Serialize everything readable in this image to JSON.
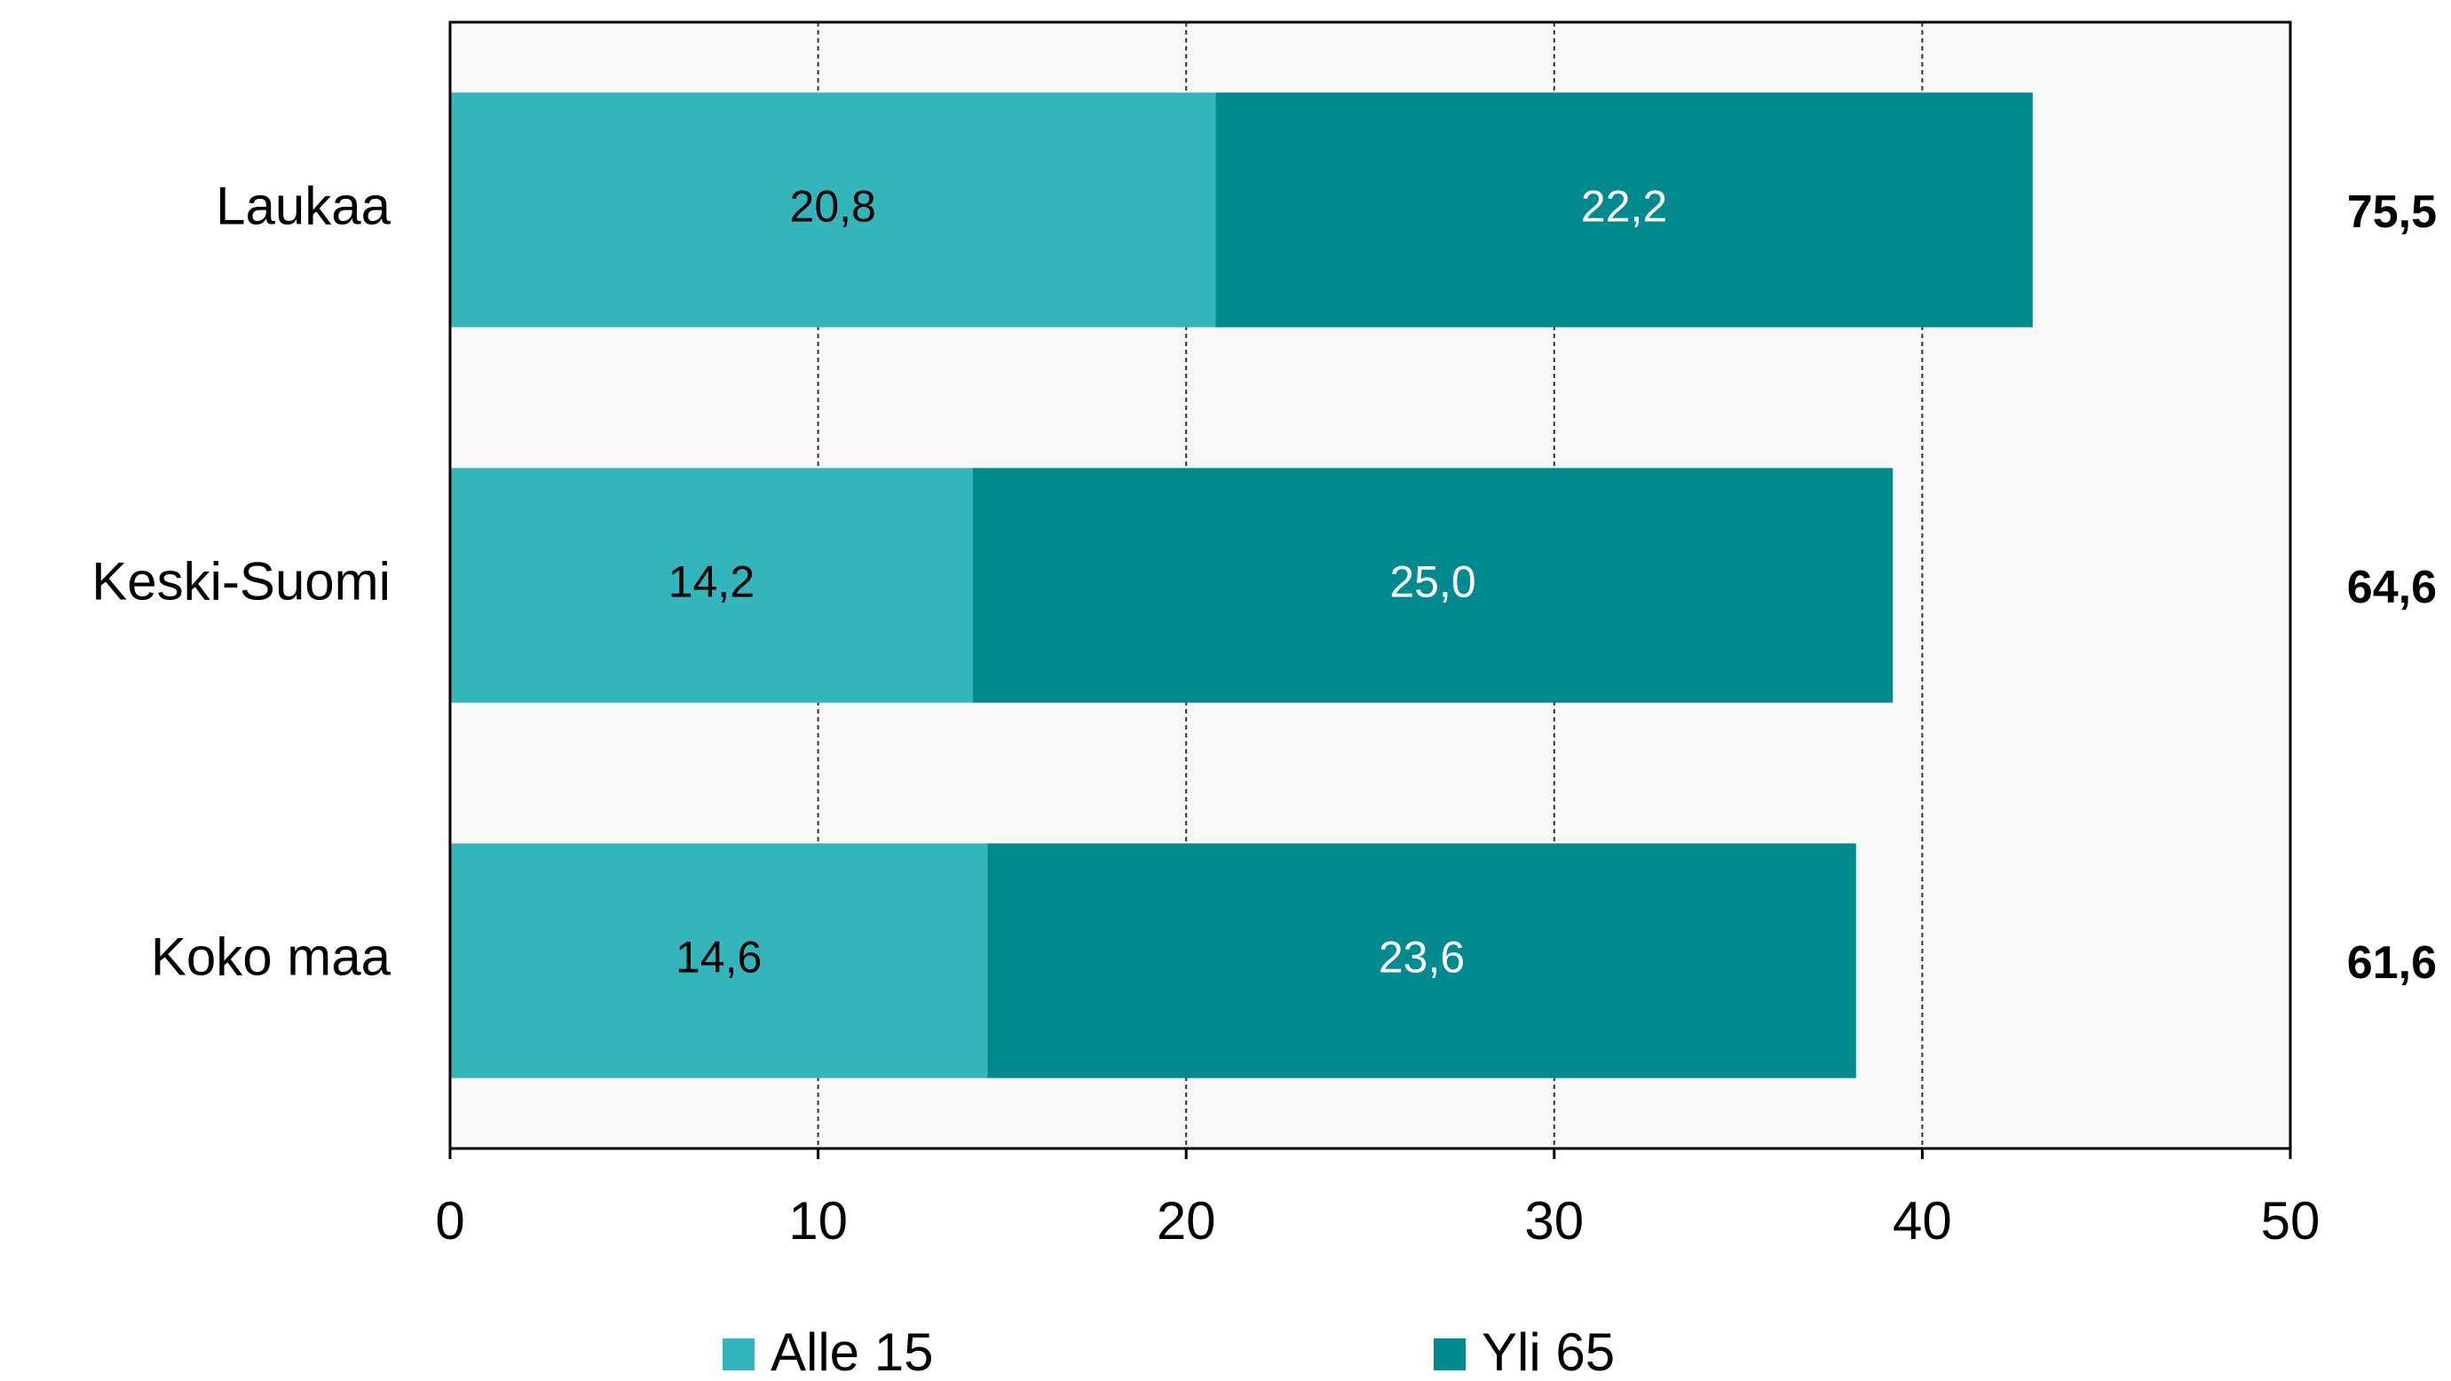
{
  "chart_data": {
    "type": "stacked-bar-horizontal",
    "categories": [
      "Laukaa",
      "Keski-Suomi",
      "Koko maa"
    ],
    "series": [
      {
        "name": "Alle 15",
        "color": "#33b5bb",
        "values": [
          20.8,
          14.2,
          14.6
        ],
        "value_labels": [
          "20,8",
          "14,2",
          "14,6"
        ]
      },
      {
        "name": "Yli 65",
        "color": "#008a8f",
        "values": [
          22.2,
          25.0,
          23.6
        ],
        "value_labels": [
          "22,2",
          "25,0",
          "23,6"
        ]
      }
    ],
    "annotations": {
      "values": [
        75.5,
        64.6,
        61.6
      ],
      "value_labels": [
        "75,5",
        "64,6",
        "61,6"
      ]
    },
    "xlim": [
      0,
      50
    ],
    "xticks": [
      0,
      10,
      20,
      30,
      40,
      50
    ],
    "grid": true,
    "legend": "bottom"
  }
}
